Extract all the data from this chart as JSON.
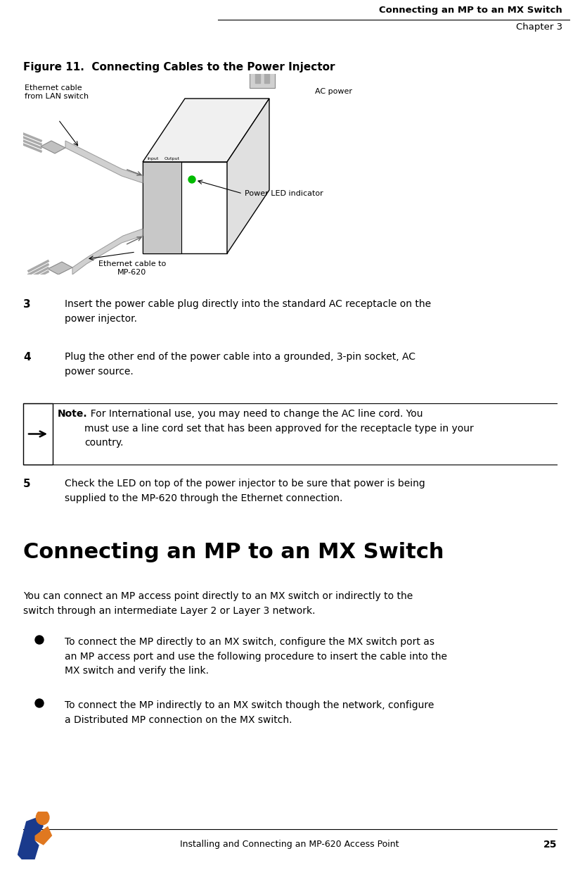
{
  "page_width": 8.25,
  "page_height": 12.36,
  "dpi": 100,
  "background_color": "#ffffff",
  "text_color": "#000000",
  "header_title": "Connecting an MP to an MX Switch",
  "header_chapter": "Chapter 3",
  "figure_title": "Figure 11.  Connecting Cables to the Power Injector",
  "step3_num": "3",
  "step3_text": "Insert the power cable plug directly into the standard AC receptacle on the\npower injector.",
  "step4_num": "4",
  "step4_text": "Plug the other end of the power cable into a grounded, 3-pin socket, AC\npower source.",
  "note_bold": "Note.",
  "note_text": "  For International use, you may need to change the AC line cord. You\nmust use a line cord set that has been approved for the receptacle type in your\ncountry.",
  "step5_num": "5",
  "step5_text": "Check the LED on top of the power injector to be sure that power is being\nsupplied to the MP-620 through the Ethernet connection.",
  "section_title": "Connecting an MP to an MX Switch",
  "section_para": "You can connect an MP access point directly to an MX switch or indirectly to the\nswitch through an intermediate Layer 2 or Layer 3 network.",
  "bullet1": "To connect the MP directly to an MX switch, configure the MX switch port as\nan MP access port and use the following procedure to insert the cable into the\nMX switch and verify the link.",
  "bullet2": "To connect the MP indirectly to an MX switch though the network, configure\na Distributed MP connection on the MX switch.",
  "footer_text": "Installing and Connecting an MP-620 Access Point",
  "footer_page": "25",
  "label_ac": "AC power",
  "label_eth_lan": "Ethernet cable\nfrom LAN switch",
  "label_led": "Power LED indicator",
  "label_eth_mp": "Ethernet cable to\nMP-620",
  "logo_blue": "#1a3a8c",
  "logo_orange": "#e07820",
  "gray_light": "#d8d8d8",
  "gray_mid": "#b0b0b0",
  "gray_dark": "#888888",
  "gray_darker": "#606060"
}
